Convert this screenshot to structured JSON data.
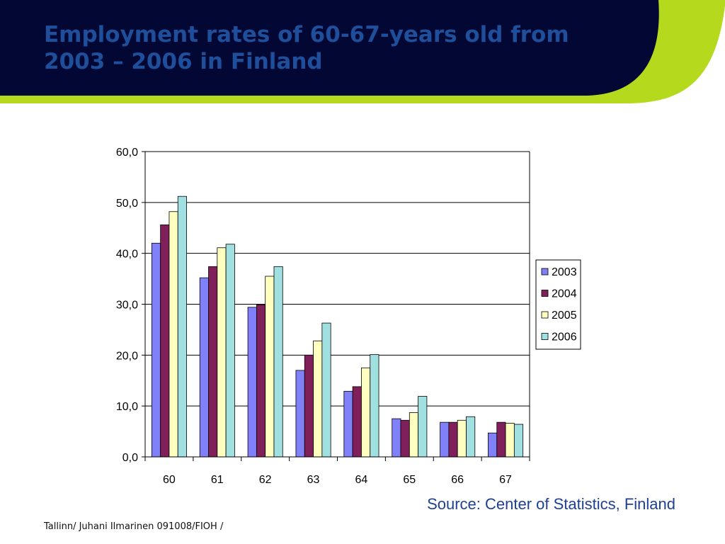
{
  "slide": {
    "title": "Employment rates of 60-67-years old from\n2003 – 2006 in Finland",
    "source": "Source: Center of Statistics, Finland",
    "footer": "Tallinn/ Juhani Ilmarinen 091008/FIOH /"
  },
  "theme": {
    "header_dark": "#020833",
    "header_accent": "#b5d91c",
    "title_color": "#1f4e9a"
  },
  "chart_data": {
    "type": "bar",
    "title": "",
    "xlabel": "",
    "ylabel": "",
    "categories": [
      "60",
      "61",
      "62",
      "63",
      "64",
      "65",
      "66",
      "67"
    ],
    "series": [
      {
        "name": "2003",
        "color": "#8080f8",
        "values": [
          42.0,
          35.2,
          29.4,
          17.0,
          12.9,
          7.5,
          6.8,
          4.7
        ]
      },
      {
        "name": "2004",
        "color": "#80205a",
        "values": [
          45.6,
          37.4,
          29.9,
          20.0,
          13.8,
          7.2,
          6.8,
          6.8
        ]
      },
      {
        "name": "2005",
        "color": "#ffffc0",
        "values": [
          48.2,
          41.1,
          35.5,
          22.8,
          17.5,
          8.7,
          7.2,
          6.6
        ]
      },
      {
        "name": "2006",
        "color": "#a0e0e0",
        "values": [
          51.2,
          41.8,
          37.4,
          26.3,
          20.1,
          11.9,
          7.9,
          6.4
        ]
      }
    ],
    "ylim": [
      0,
      60
    ],
    "yticks": [
      "0,0",
      "10,0",
      "20,0",
      "30,0",
      "40,0",
      "50,0",
      "60,0"
    ],
    "grid": true,
    "legend": "right"
  }
}
